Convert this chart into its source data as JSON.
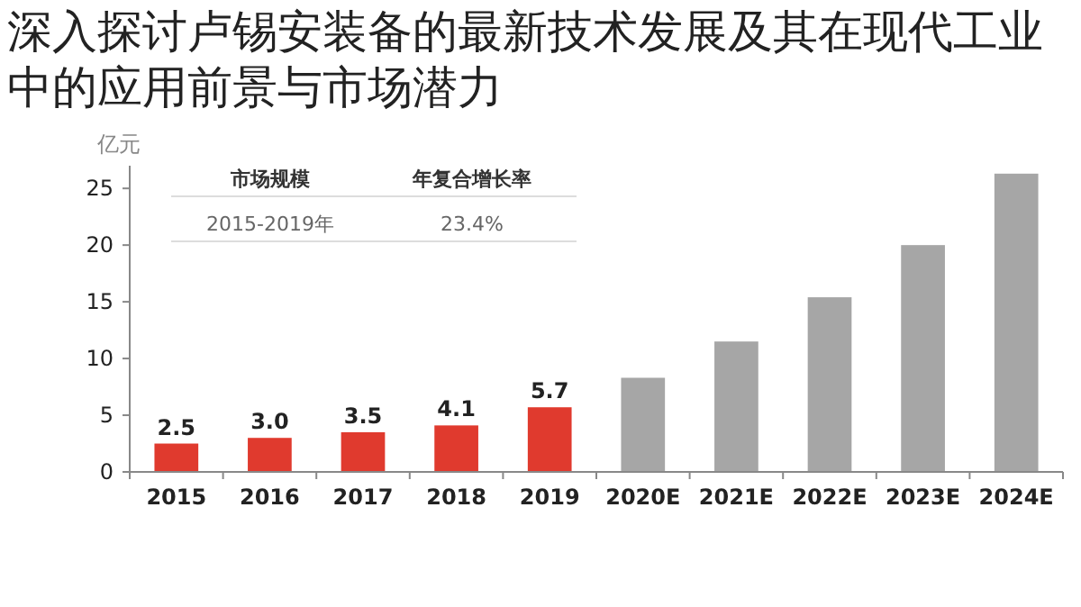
{
  "chart_data": {
    "type": "bar",
    "title": "深入探讨卢锡安装备的最新技术发展及其在现代工业中的应用前景与市场潜力",
    "ylabel": "亿元",
    "categories": [
      "2015",
      "2016",
      "2017",
      "2018",
      "2019",
      "2020E",
      "2021E",
      "2022E",
      "2023E",
      "2024E"
    ],
    "values": [
      2.5,
      3.0,
      3.5,
      4.1,
      5.7,
      8.3,
      11.5,
      15.4,
      20.0,
      26.3
    ],
    "colors": [
      "#e03a2e",
      "#e03a2e",
      "#e03a2e",
      "#e03a2e",
      "#e03a2e",
      "#a6a6a6",
      "#a6a6a6",
      "#a6a6a6",
      "#a6a6a6",
      "#a6a6a6"
    ],
    "value_labels": [
      "2.5",
      "3.0",
      "3.5",
      "4.1",
      "5.7",
      null,
      null,
      null,
      null,
      null
    ],
    "ylim": [
      0,
      27
    ],
    "yticks": [
      0,
      5,
      10,
      15,
      20,
      25
    ],
    "grid": false,
    "annotations": [
      "市场规模",
      "年复合增长率",
      "2015-2019年",
      "23.4%"
    ]
  }
}
